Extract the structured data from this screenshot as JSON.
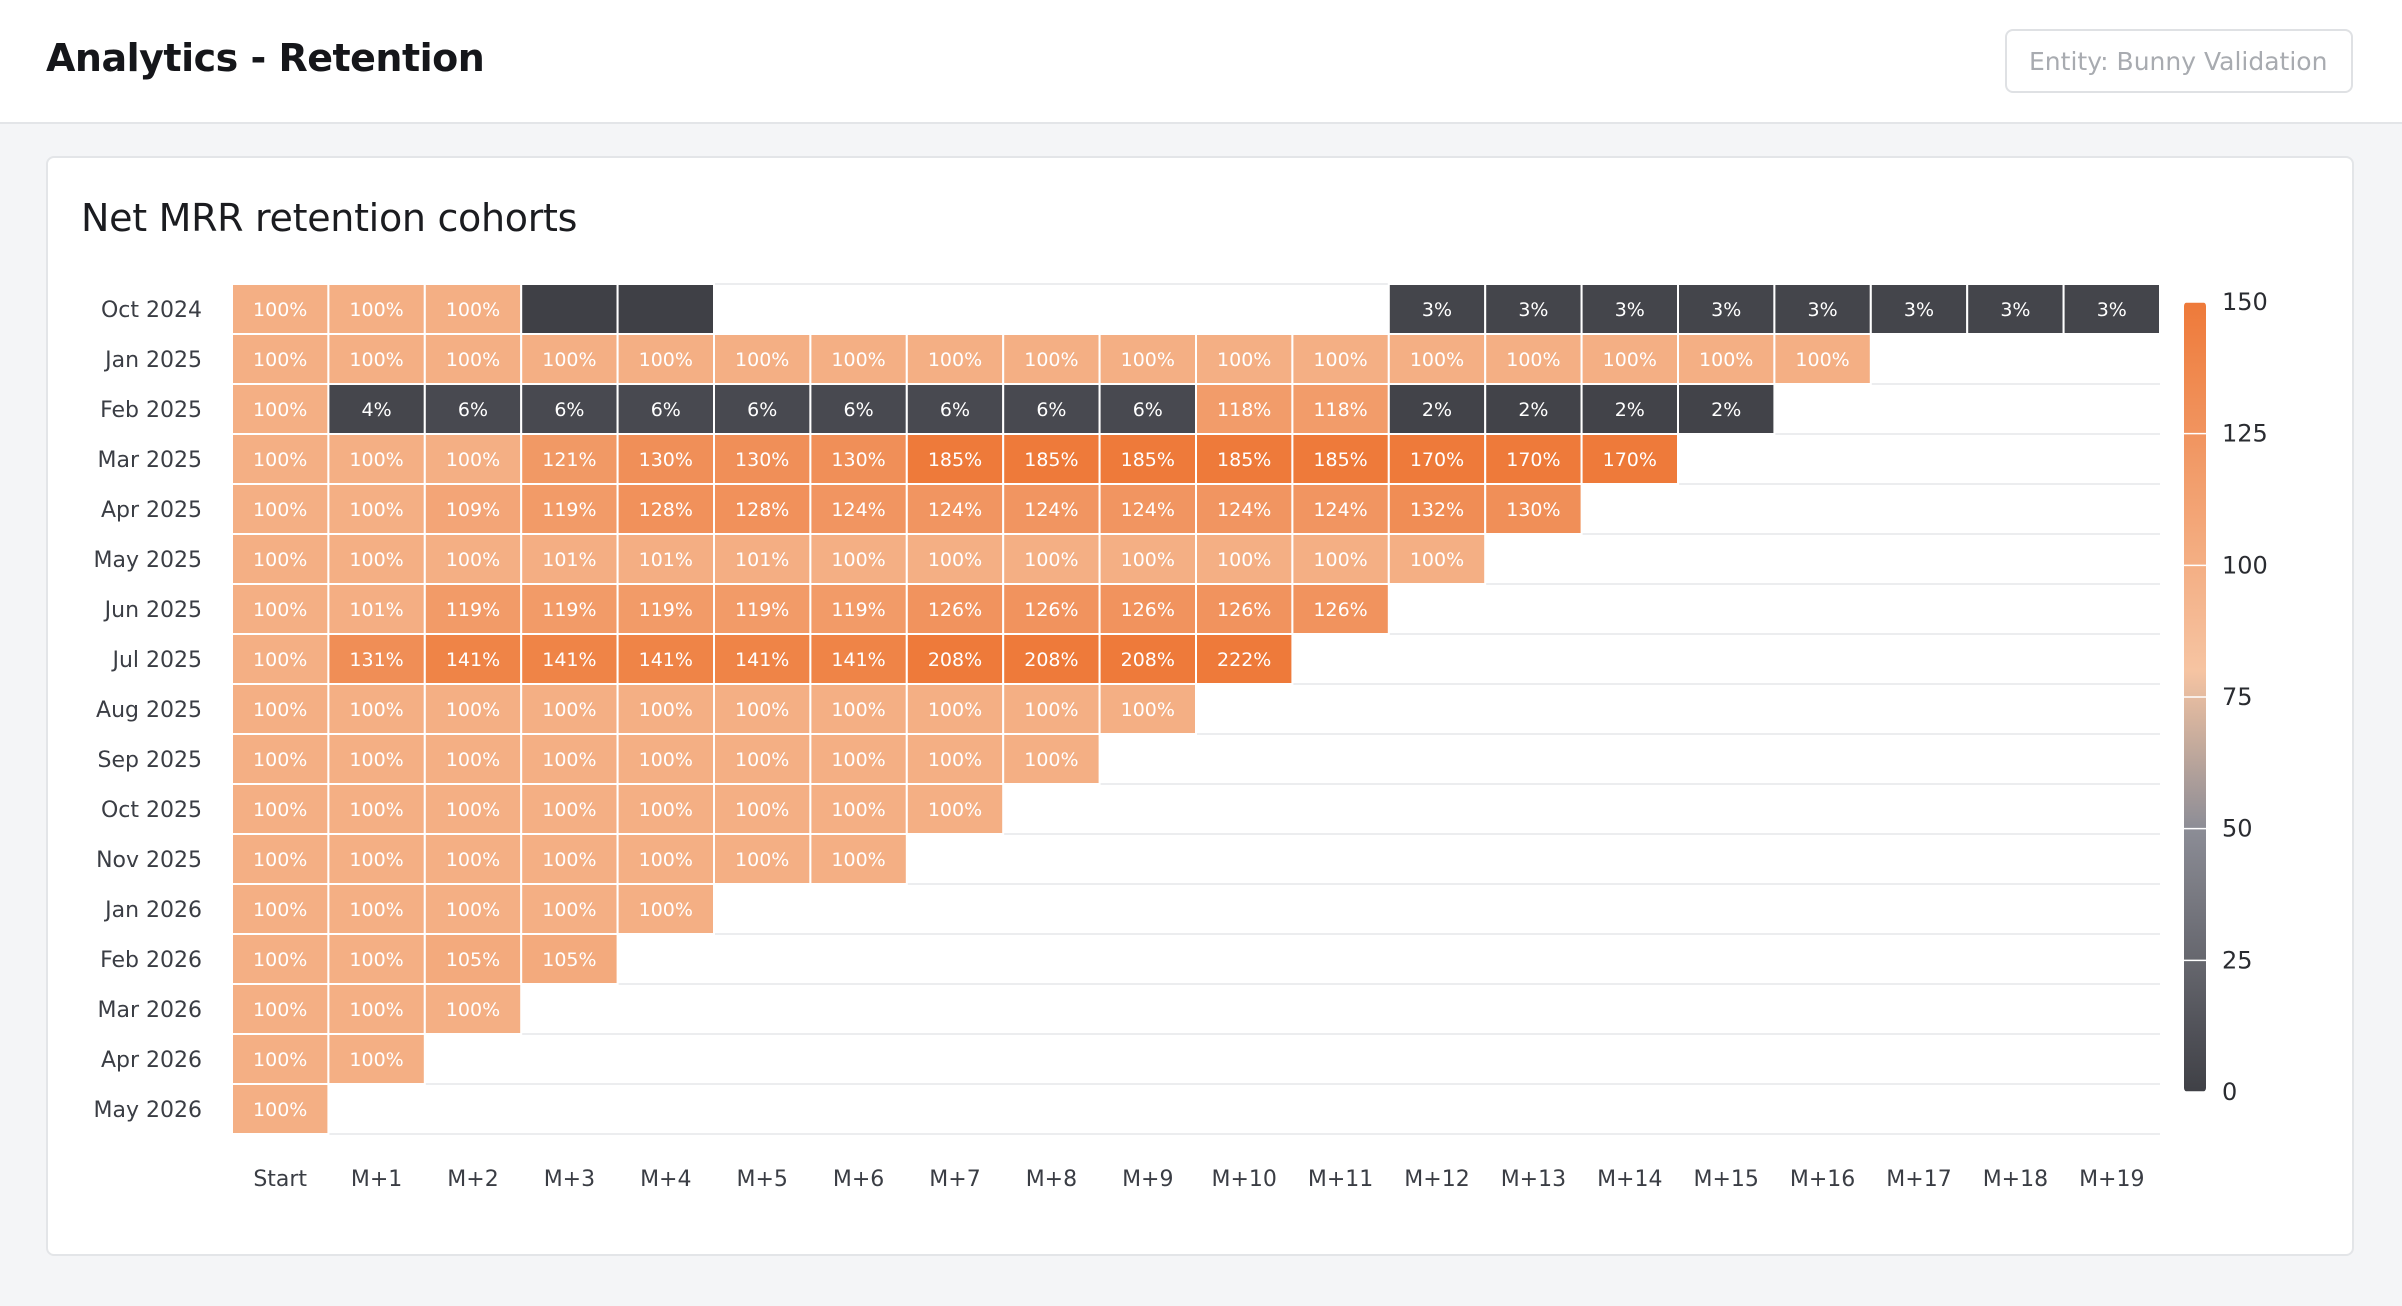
{
  "header": {
    "title": "Analytics - Retention",
    "entity_filter": {
      "placeholder": "Entity: Bunny Validation",
      "value": ""
    }
  },
  "card": {
    "title": "Net MRR retention cohorts"
  },
  "colors": {
    "low": "#3f4046",
    "mid": "#8c8d96",
    "light_peach": "#f6c4a2",
    "high": "#ee7a3a"
  },
  "chart_data": {
    "type": "heatmap",
    "title": "Net MRR retention cohorts",
    "columns": [
      "Start",
      "M+1",
      "M+2",
      "M+3",
      "M+4",
      "M+5",
      "M+6",
      "M+7",
      "M+8",
      "M+9",
      "M+10",
      "M+11",
      "M+12",
      "M+13",
      "M+14",
      "M+15",
      "M+16",
      "M+17",
      "M+18",
      "M+19"
    ],
    "rows": [
      {
        "cohort": "Oct 2024",
        "values": [
          100,
          100,
          100,
          0,
          0,
          null,
          null,
          null,
          null,
          null,
          null,
          null,
          3,
          3,
          3,
          3,
          3,
          3,
          3,
          3
        ],
        "labels": [
          "100%",
          "100%",
          "100%",
          "",
          "",
          "",
          "",
          "",
          "",
          "",
          "",
          "",
          "3%",
          "3%",
          "3%",
          "3%",
          "3%",
          "3%",
          "3%",
          "3%"
        ]
      },
      {
        "cohort": "Jan 2025",
        "values": [
          100,
          100,
          100,
          100,
          100,
          100,
          100,
          100,
          100,
          100,
          100,
          100,
          100,
          100,
          100,
          100,
          100
        ],
        "labels": [
          "100%",
          "100%",
          "100%",
          "100%",
          "100%",
          "100%",
          "100%",
          "100%",
          "100%",
          "100%",
          "100%",
          "100%",
          "100%",
          "100%",
          "100%",
          "100%",
          "100%"
        ]
      },
      {
        "cohort": "Feb 2025",
        "values": [
          100,
          4,
          6,
          6,
          6,
          6,
          6,
          6,
          6,
          6,
          118,
          118,
          2,
          2,
          2,
          2
        ],
        "labels": [
          "100%",
          "4%",
          "6%",
          "6%",
          "6%",
          "6%",
          "6%",
          "6%",
          "6%",
          "6%",
          "118%",
          "118%",
          "2%",
          "2%",
          "2%",
          "2%"
        ]
      },
      {
        "cohort": "Mar 2025",
        "values": [
          100,
          100,
          100,
          121,
          130,
          130,
          130,
          185,
          185,
          185,
          185,
          185,
          170,
          170,
          170
        ],
        "labels": [
          "100%",
          "100%",
          "100%",
          "121%",
          "130%",
          "130%",
          "130%",
          "185%",
          "185%",
          "185%",
          "185%",
          "185%",
          "170%",
          "170%",
          "170%"
        ]
      },
      {
        "cohort": "Apr 2025",
        "values": [
          100,
          100,
          109,
          119,
          128,
          128,
          124,
          124,
          124,
          124,
          124,
          124,
          132,
          130
        ],
        "labels": [
          "100%",
          "100%",
          "109%",
          "119%",
          "128%",
          "128%",
          "124%",
          "124%",
          "124%",
          "124%",
          "124%",
          "124%",
          "132%",
          "130%"
        ]
      },
      {
        "cohort": "May 2025",
        "values": [
          100,
          100,
          100,
          101,
          101,
          101,
          100,
          100,
          100,
          100,
          100,
          100,
          100
        ],
        "labels": [
          "100%",
          "100%",
          "100%",
          "101%",
          "101%",
          "101%",
          "100%",
          "100%",
          "100%",
          "100%",
          "100%",
          "100%",
          "100%"
        ]
      },
      {
        "cohort": "Jun 2025",
        "values": [
          100,
          101,
          119,
          119,
          119,
          119,
          119,
          126,
          126,
          126,
          126,
          126
        ],
        "labels": [
          "100%",
          "101%",
          "119%",
          "119%",
          "119%",
          "119%",
          "119%",
          "126%",
          "126%",
          "126%",
          "126%",
          "126%"
        ]
      },
      {
        "cohort": "Jul 2025",
        "values": [
          100,
          131,
          141,
          141,
          141,
          141,
          141,
          208,
          208,
          208,
          222
        ],
        "labels": [
          "100%",
          "131%",
          "141%",
          "141%",
          "141%",
          "141%",
          "141%",
          "208%",
          "208%",
          "208%",
          "222%"
        ]
      },
      {
        "cohort": "Aug 2025",
        "values": [
          100,
          100,
          100,
          100,
          100,
          100,
          100,
          100,
          100,
          100
        ],
        "labels": [
          "100%",
          "100%",
          "100%",
          "100%",
          "100%",
          "100%",
          "100%",
          "100%",
          "100%",
          "100%"
        ]
      },
      {
        "cohort": "Sep 2025",
        "values": [
          100,
          100,
          100,
          100,
          100,
          100,
          100,
          100,
          100
        ],
        "labels": [
          "100%",
          "100%",
          "100%",
          "100%",
          "100%",
          "100%",
          "100%",
          "100%",
          "100%"
        ]
      },
      {
        "cohort": "Oct 2025",
        "values": [
          100,
          100,
          100,
          100,
          100,
          100,
          100,
          100
        ],
        "labels": [
          "100%",
          "100%",
          "100%",
          "100%",
          "100%",
          "100%",
          "100%",
          "100%"
        ]
      },
      {
        "cohort": "Nov 2025",
        "values": [
          100,
          100,
          100,
          100,
          100,
          100,
          100
        ],
        "labels": [
          "100%",
          "100%",
          "100%",
          "100%",
          "100%",
          "100%",
          "100%"
        ]
      },
      {
        "cohort": "Jan 2026",
        "values": [
          100,
          100,
          100,
          100,
          100
        ],
        "labels": [
          "100%",
          "100%",
          "100%",
          "100%",
          "100%"
        ]
      },
      {
        "cohort": "Feb 2026",
        "values": [
          100,
          100,
          105,
          105
        ],
        "labels": [
          "100%",
          "100%",
          "105%",
          "105%"
        ]
      },
      {
        "cohort": "Mar 2026",
        "values": [
          100,
          100,
          100
        ],
        "labels": [
          "100%",
          "100%",
          "100%"
        ]
      },
      {
        "cohort": "Apr 2026",
        "values": [
          100,
          100
        ],
        "labels": [
          "100%",
          "100%"
        ]
      },
      {
        "cohort": "May 2026",
        "values": [
          100
        ],
        "labels": [
          "100%"
        ]
      }
    ],
    "color_scale": {
      "min": 0,
      "max": 150,
      "ticks": [
        0,
        25,
        50,
        75,
        100,
        125,
        150
      ]
    },
    "legend_position": "right",
    "grid": true
  }
}
